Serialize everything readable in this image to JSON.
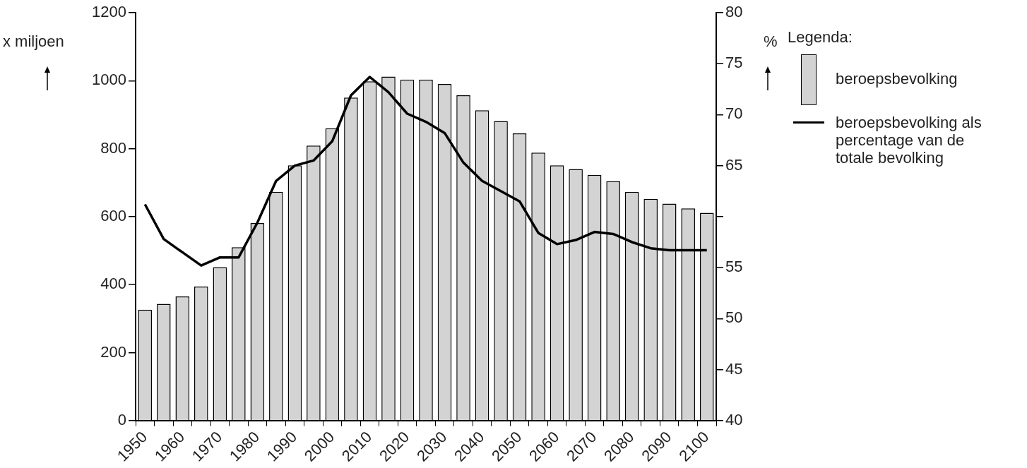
{
  "chart_data": {
    "type": "bar",
    "ylabel": "x miljoen",
    "y2label": "%",
    "legend_title": "Legenda:",
    "legend": "right",
    "grid": false,
    "categories": [
      "1950",
      null,
      "1960",
      null,
      "1970",
      null,
      "1980",
      null,
      "1990",
      null,
      "2000",
      null,
      "2010",
      null,
      "2020",
      null,
      "2030",
      null,
      "2040",
      null,
      "2050",
      null,
      "2060",
      null,
      "2070",
      null,
      "2080",
      null,
      "2090",
      null,
      "2100"
    ],
    "ylim": [
      0,
      1200
    ],
    "yticks": [
      0,
      200,
      400,
      600,
      800,
      1000,
      1200
    ],
    "y2lim": [
      40,
      80
    ],
    "y2ticks": [
      40,
      45,
      50,
      55,
      {
        "value": 60,
        "label": null
      },
      65,
      70,
      75,
      80
    ],
    "series": [
      {
        "name": "beroepsbevolking",
        "color": "#d3d3d3",
        "values": [
          326,
          343,
          365,
          394,
          451,
          510,
          581,
          673,
          751,
          809,
          860,
          950,
          998,
          1012,
          1003,
          1003,
          990,
          957,
          913,
          881,
          845,
          788,
          751,
          740,
          723,
          704,
          673,
          652,
          638,
          624,
          611
        ]
      },
      {
        "name": "beroepsbevolking als percentage van de totale bevolking",
        "type": "line",
        "axis": "y2",
        "color": "#000000",
        "marker": "none",
        "line_style": "solid",
        "values": [
          61.2,
          57.8,
          56.5,
          55.2,
          56.0,
          56.0,
          59.4,
          63.5,
          65.0,
          65.5,
          67.4,
          71.9,
          73.7,
          72.2,
          70.1,
          69.3,
          68.2,
          65.3,
          63.5,
          62.5,
          61.5,
          58.4,
          57.3,
          57.7,
          58.5,
          58.3,
          57.5,
          56.9,
          56.7,
          56.7,
          56.7
        ]
      }
    ]
  }
}
